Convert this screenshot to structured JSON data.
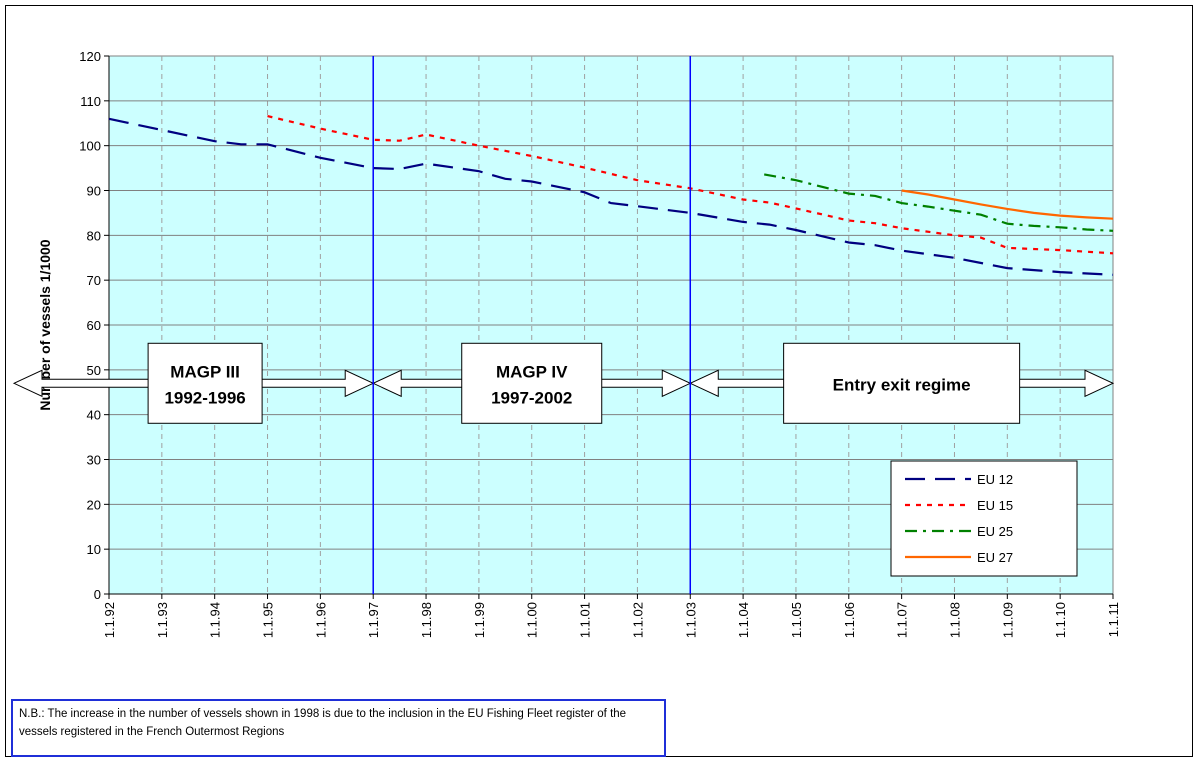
{
  "chart_data": {
    "type": "line",
    "ylabel": "Number of vessels 1/1000",
    "xlabel": "",
    "ylim": [
      0,
      120
    ],
    "yticks": [
      0,
      10,
      20,
      30,
      40,
      50,
      60,
      70,
      80,
      90,
      100,
      110,
      120
    ],
    "x_tick_labels": [
      "1.1.92",
      "1.1.93",
      "1.1.94",
      "1.1.95",
      "1.1.96",
      "1.1.97",
      "1.1.98",
      "1.1.99",
      "1.1.00",
      "1.1.01",
      "1.1.02",
      "1.1.03",
      "1.1.04",
      "1.1.05",
      "1.1.06",
      "1.1.07",
      "1.1.08",
      "1.1.09",
      "1.1.10",
      "1.1.11"
    ],
    "x_start_year": 1992,
    "x_end_year": 2011,
    "grid": true,
    "plot_background": "#ccffff",
    "legend_position": "bottom-right",
    "series": [
      {
        "name": "EU 12",
        "color": "#000080",
        "dash": "long-dash",
        "points": [
          [
            1992.0,
            106.0
          ],
          [
            1993.0,
            103.5
          ],
          [
            1994.0,
            101.0
          ],
          [
            1994.5,
            100.3
          ],
          [
            1995.0,
            100.3
          ],
          [
            1996.0,
            97.3
          ],
          [
            1997.0,
            95.0
          ],
          [
            1997.5,
            94.8
          ],
          [
            1998.0,
            96.0
          ],
          [
            1999.0,
            94.3
          ],
          [
            1999.5,
            92.6
          ],
          [
            2000.0,
            92.0
          ],
          [
            2001.0,
            89.6
          ],
          [
            2001.5,
            87.2
          ],
          [
            2002.0,
            86.5
          ],
          [
            2003.0,
            85.0
          ],
          [
            2004.0,
            83.0
          ],
          [
            2004.5,
            82.4
          ],
          [
            2005.0,
            81.2
          ],
          [
            2006.0,
            78.4
          ],
          [
            2006.5,
            77.8
          ],
          [
            2007.0,
            76.6
          ],
          [
            2008.0,
            75.0
          ],
          [
            2009.0,
            72.7
          ],
          [
            2010.0,
            71.8
          ],
          [
            2011.0,
            71.2
          ]
        ]
      },
      {
        "name": "EU 15",
        "color": "#ff0000",
        "dash": "dotted",
        "points": [
          [
            1995.0,
            106.6
          ],
          [
            1996.0,
            103.8
          ],
          [
            1997.0,
            101.3
          ],
          [
            1997.5,
            101.1
          ],
          [
            1998.0,
            102.5
          ],
          [
            1999.0,
            100.0
          ],
          [
            2000.0,
            97.7
          ],
          [
            2001.0,
            95.1
          ],
          [
            2002.0,
            92.3
          ],
          [
            2003.0,
            90.5
          ],
          [
            2004.0,
            88.0
          ],
          [
            2004.5,
            87.3
          ],
          [
            2005.0,
            86.0
          ],
          [
            2006.0,
            83.3
          ],
          [
            2006.5,
            82.7
          ],
          [
            2007.0,
            81.6
          ],
          [
            2008.0,
            80.0
          ],
          [
            2008.5,
            79.5
          ],
          [
            2009.0,
            77.2
          ],
          [
            2010.0,
            76.7
          ],
          [
            2011.0,
            76.0
          ]
        ]
      },
      {
        "name": "EU 25",
        "color": "#008000",
        "dash": "dash-dot",
        "points": [
          [
            2004.4,
            93.6
          ],
          [
            2005.0,
            92.3
          ],
          [
            2006.0,
            89.3
          ],
          [
            2006.5,
            88.8
          ],
          [
            2007.0,
            87.2
          ],
          [
            2007.5,
            86.4
          ],
          [
            2008.0,
            85.5
          ],
          [
            2008.5,
            84.6
          ],
          [
            2009.0,
            82.6
          ],
          [
            2009.5,
            82.1
          ],
          [
            2010.0,
            81.8
          ],
          [
            2010.5,
            81.3
          ],
          [
            2011.0,
            81.0
          ]
        ]
      },
      {
        "name": "EU 27",
        "color": "#ff6600",
        "dash": "solid",
        "points": [
          [
            2007.0,
            90.0
          ],
          [
            2007.5,
            89.1
          ],
          [
            2008.0,
            88.0
          ],
          [
            2008.5,
            86.9
          ],
          [
            2009.0,
            85.9
          ],
          [
            2009.5,
            85.0
          ],
          [
            2010.0,
            84.4
          ],
          [
            2010.5,
            84.0
          ],
          [
            2011.0,
            83.7
          ]
        ]
      }
    ],
    "periods": [
      {
        "line1": "MAGP III",
        "line2": "1992-1996",
        "from": 1992.0,
        "to": 1997.0
      },
      {
        "line1": "MAGP IV",
        "line2": "1997-2002",
        "from": 1997.0,
        "to": 2003.0
      },
      {
        "line1": "Entry exit regime",
        "line2": "",
        "from": 2003.0,
        "to": 2011.0
      }
    ],
    "period_level": 47,
    "vertical_markers": [
      1997.0,
      2003.0
    ],
    "vertical_marker_color": "#0000ff"
  },
  "note": "N.B.: The increase in the number of vessels shown in 1998 is due to the inclusion in the EU Fishing Fleet register of the vessels registered in the French Outermost Regions"
}
